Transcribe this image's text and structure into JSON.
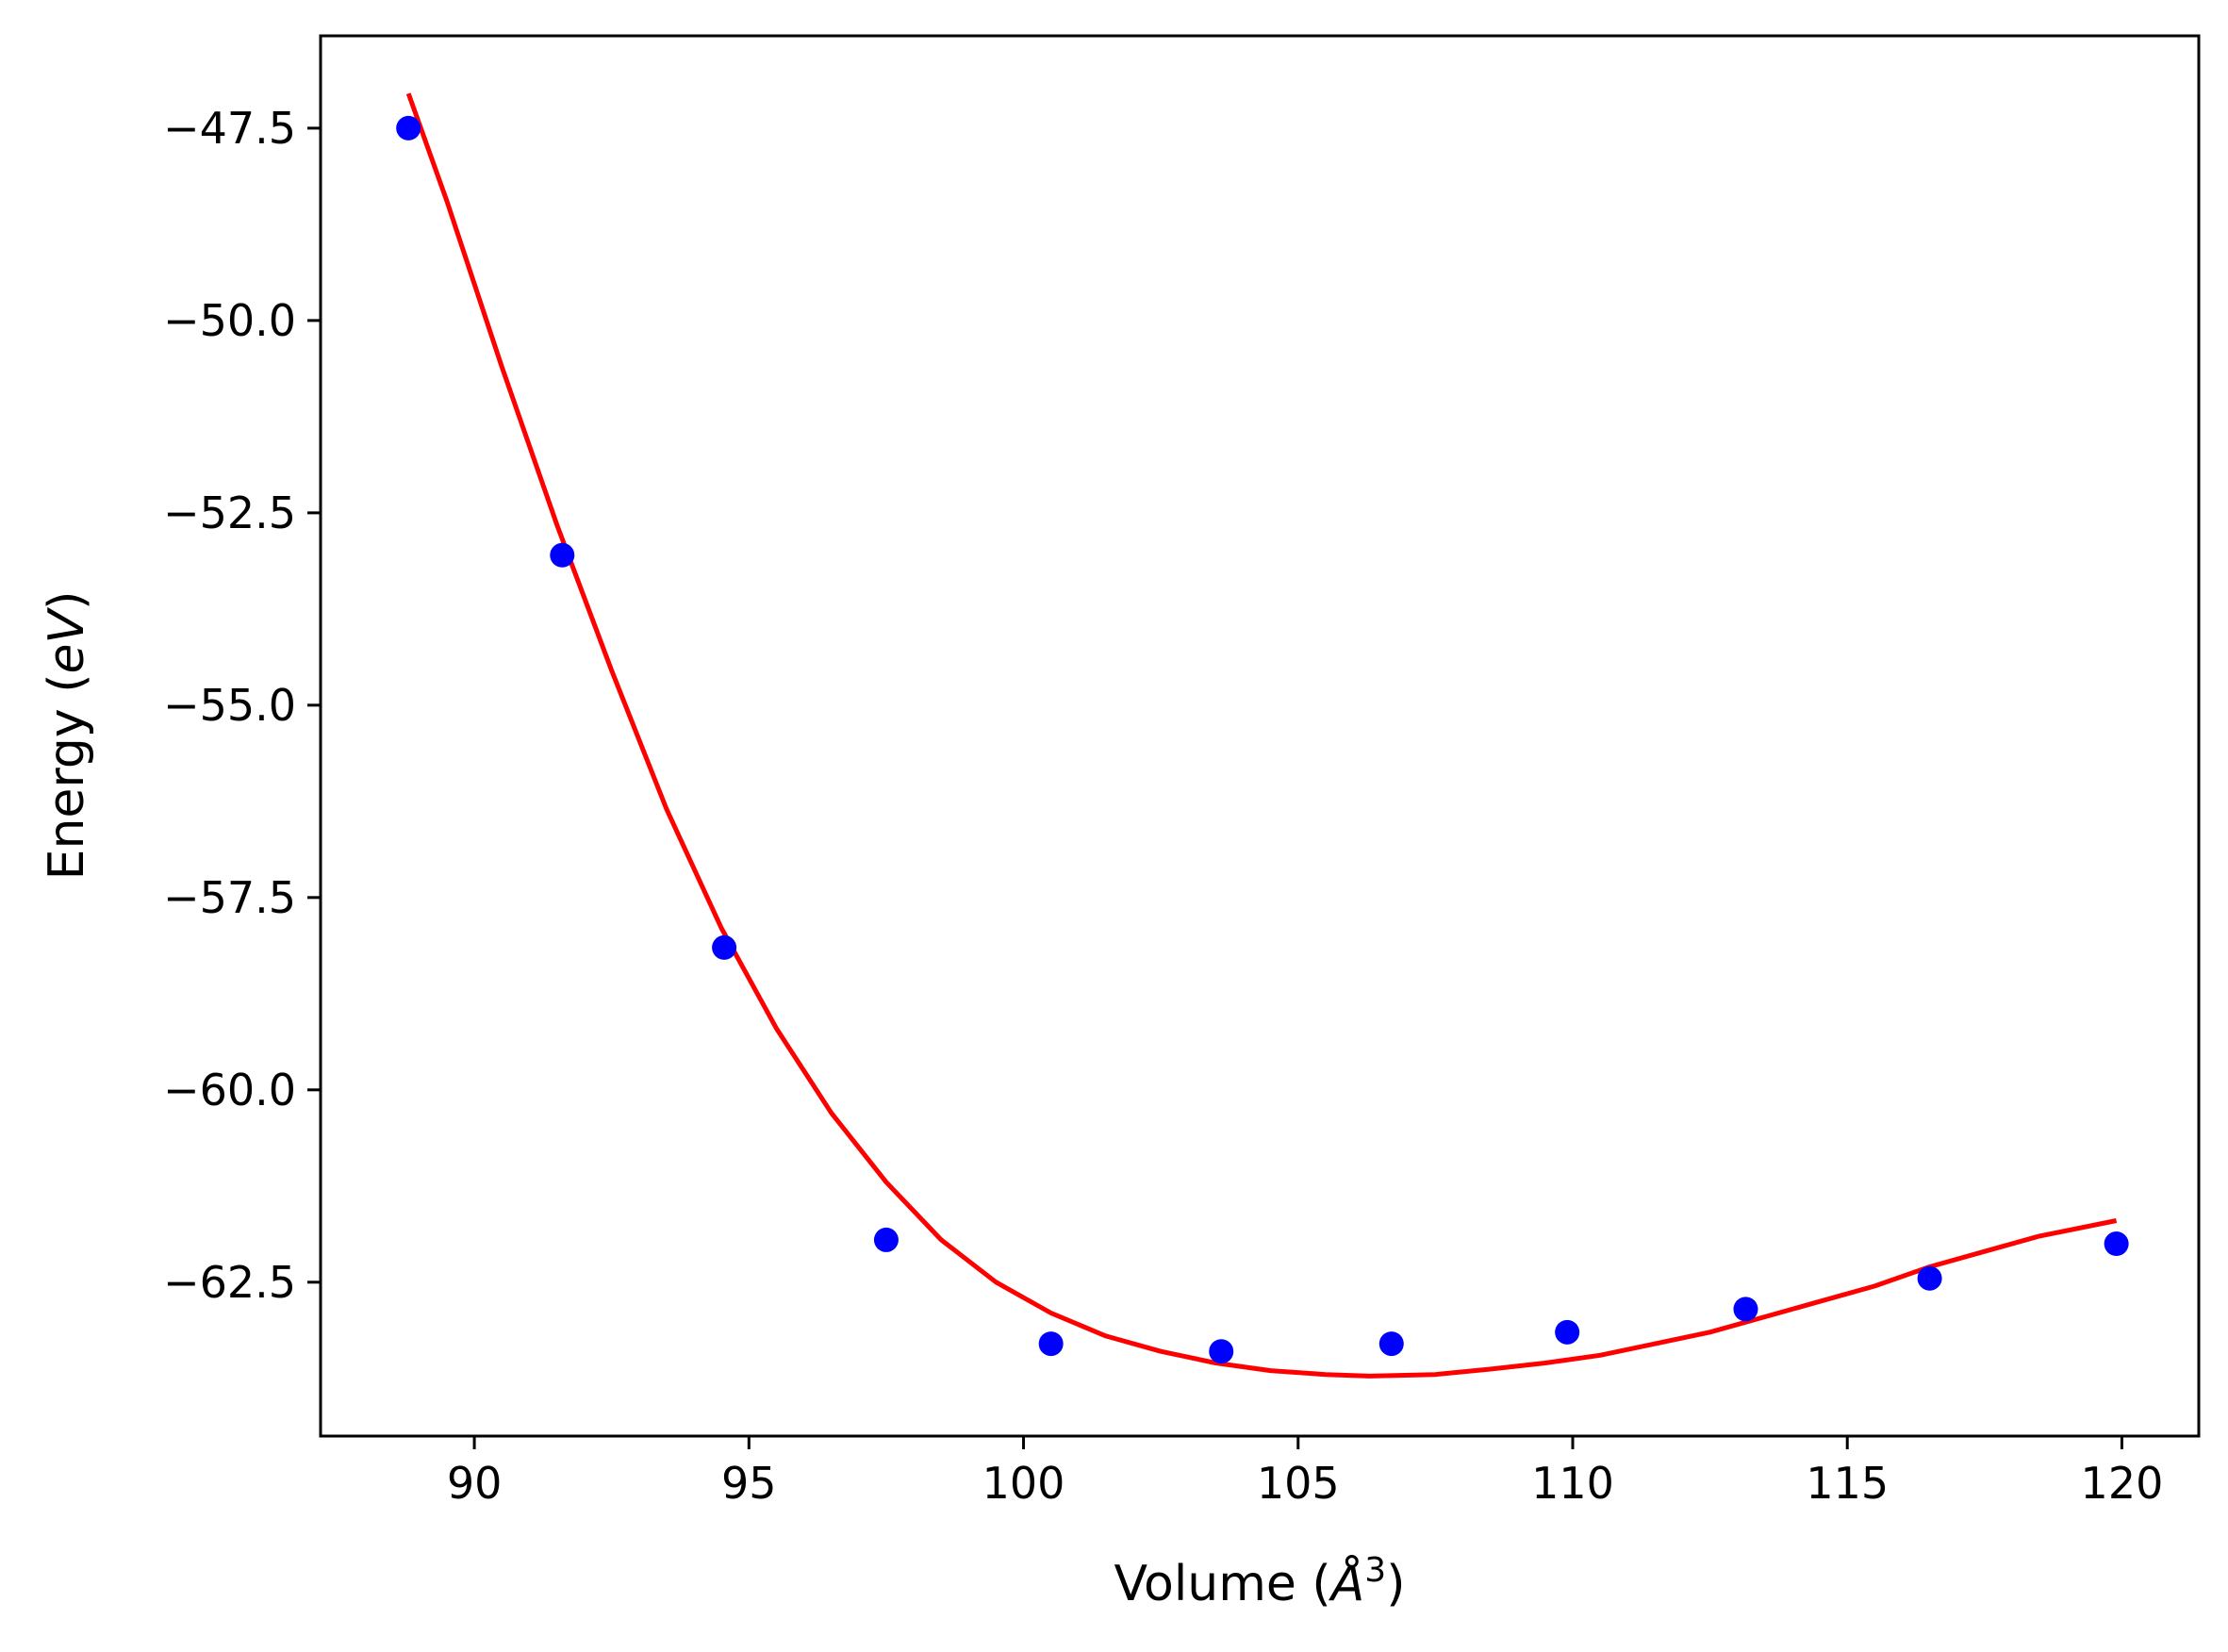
{
  "chart_data": {
    "type": "scatter",
    "title": "",
    "xlabel": {
      "main": "Volume (",
      "italic": "Å",
      "sup": "3",
      "close": ")"
    },
    "ylabel": {
      "main": "Energy (",
      "italic": "eV",
      "close": ")"
    },
    "xlim": [
      87.2,
      121.4
    ],
    "ylim": [
      -64.5,
      -46.3
    ],
    "xticks": [
      90,
      95,
      100,
      105,
      110,
      115,
      120
    ],
    "yticks": [
      -47.5,
      -50.0,
      -52.5,
      -55.0,
      -57.5,
      -60.0,
      -62.5
    ],
    "xtick_labels": [
      "90",
      "95",
      "100",
      "105",
      "110",
      "115",
      "120"
    ],
    "ytick_labels": [
      "−47.5",
      "−50.0",
      "−52.5",
      "−55.0",
      "−57.5",
      "−60.0",
      "−62.5"
    ],
    "grid": false,
    "series": [
      {
        "kind": "points",
        "color": "#0000ff",
        "x": [
          88.8,
          91.6,
          94.55,
          97.5,
          100.5,
          103.6,
          106.7,
          109.9,
          113.15,
          116.5,
          119.9
        ],
        "y": [
          -47.5,
          -53.05,
          -58.15,
          -61.95,
          -63.3,
          -63.4,
          -63.3,
          -63.15,
          -62.85,
          -62.45,
          -62.0
        ]
      },
      {
        "kind": "fit-curve",
        "color": "#ff0000",
        "x": [
          88.8,
          89.5,
          90.5,
          91.5,
          92.5,
          93.5,
          94.5,
          95.5,
          96.5,
          97.5,
          98.5,
          99.5,
          100.5,
          101.5,
          102.5,
          103.5,
          104.5,
          105.5,
          106.3,
          107.5,
          108.5,
          109.5,
          110.5,
          111.5,
          112.5,
          113.5,
          114.5,
          115.5,
          116.5,
          117.5,
          118.5,
          119.9
        ],
        "y": [
          -47.05,
          -48.45,
          -50.6,
          -52.65,
          -54.55,
          -56.35,
          -57.9,
          -59.2,
          -60.3,
          -61.2,
          -61.95,
          -62.5,
          -62.9,
          -63.2,
          -63.4,
          -63.55,
          -63.65,
          -63.7,
          -63.72,
          -63.7,
          -63.63,
          -63.55,
          -63.45,
          -63.3,
          -63.15,
          -62.95,
          -62.75,
          -62.55,
          -62.3,
          -62.1,
          -61.9,
          -61.7
        ]
      }
    ]
  }
}
